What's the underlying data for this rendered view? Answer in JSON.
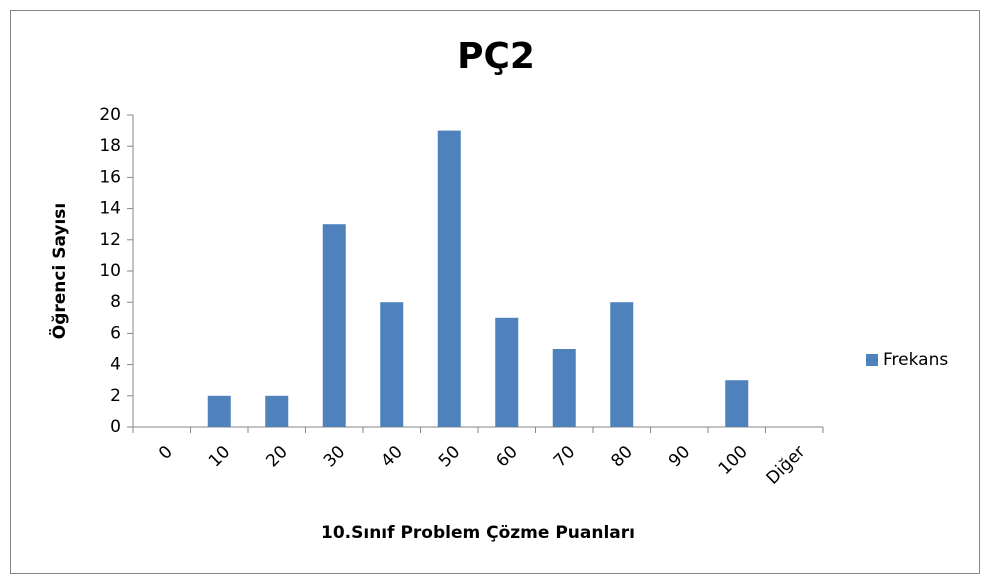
{
  "chart_data": {
    "type": "bar",
    "title": "PÇ2",
    "x_label": "10.Sınıf Problem Çözme Puanları",
    "y_label": "Öğrenci  Sayısı",
    "categories": [
      "0",
      "10",
      "20",
      "30",
      "40",
      "50",
      "60",
      "70",
      "80",
      "90",
      "100",
      "Diğer"
    ],
    "series": [
      {
        "name": "Frekans",
        "color": "#4f81bd",
        "values": [
          0,
          2,
          2,
          13,
          8,
          19,
          7,
          5,
          8,
          0,
          3,
          0
        ]
      }
    ],
    "ylim": [
      0,
      20
    ],
    "yticks": [
      0,
      2,
      4,
      6,
      8,
      10,
      12,
      14,
      16,
      18,
      20
    ],
    "grid": false,
    "legend": "right"
  }
}
